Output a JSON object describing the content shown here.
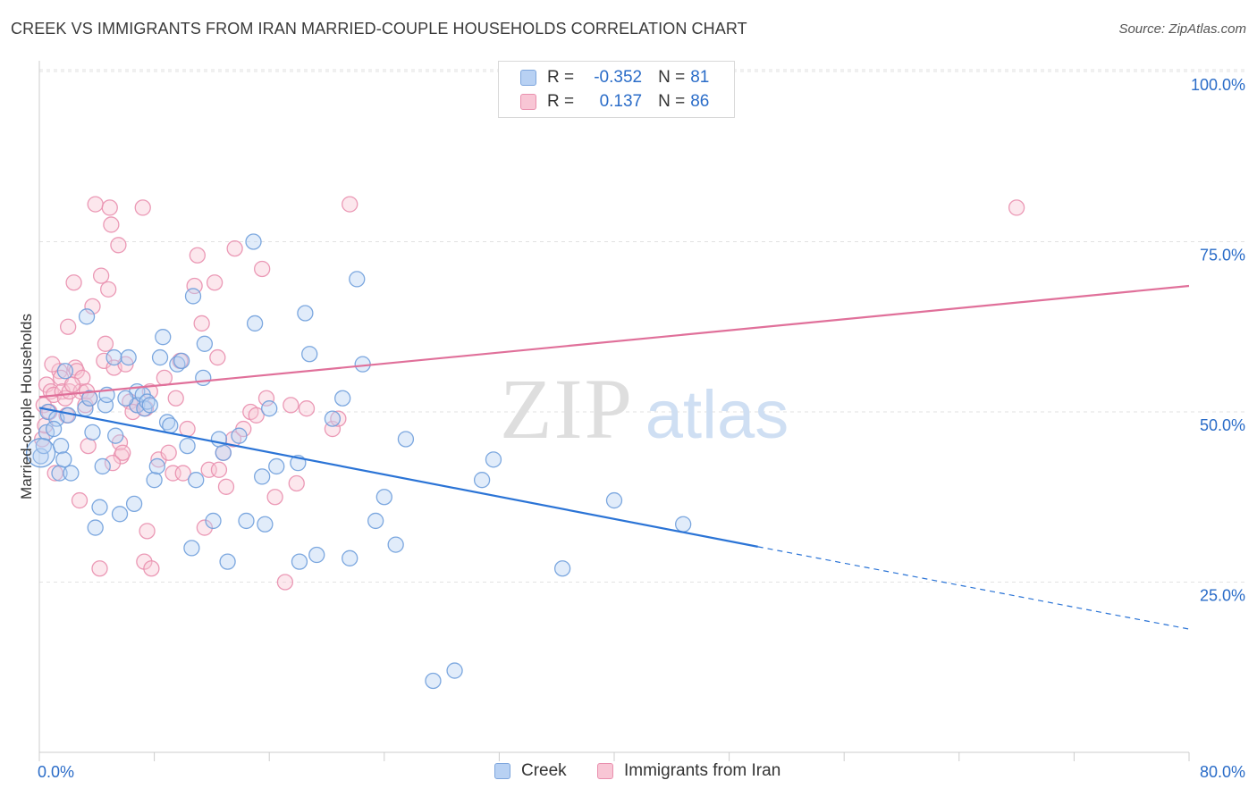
{
  "title": "CREEK VS IMMIGRANTS FROM IRAN MARRIED-COUPLE HOUSEHOLDS CORRELATION CHART",
  "source": "Source: ZipAtlas.com",
  "watermark": {
    "zip": "ZIP",
    "atlas": "atlas"
  },
  "legend": {
    "series1": {
      "r_label": "R =",
      "r_value": "-0.352",
      "n_label": "N =",
      "n_value": "81"
    },
    "series2": {
      "r_label": "R =",
      "r_value": "0.137",
      "n_label": "N =",
      "n_value": "86"
    }
  },
  "colors": {
    "creek_fill": "#b8d1f3",
    "creek_stroke": "#6f9fdc",
    "creek_line": "#2b74d6",
    "iran_fill": "#f8c6d5",
    "iran_stroke": "#e98fae",
    "iran_line": "#e0709a",
    "value_text": "#2a6cc8",
    "grid": "#e2e2e2"
  },
  "chart_data": {
    "type": "scatter",
    "title": "CREEK VS IMMIGRANTS FROM IRAN MARRIED-COUPLE HOUSEHOLDS CORRELATION CHART",
    "xlabel": "",
    "ylabel": "Married-couple Households",
    "xlim": [
      0,
      80
    ],
    "ylim": [
      0,
      105
    ],
    "x_tick_labels": [
      "0.0%",
      "80.0%"
    ],
    "y_ticks": [
      25,
      50,
      75,
      100
    ],
    "y_tick_labels": [
      "25.0%",
      "50.0%",
      "75.0%",
      "100.0%"
    ],
    "grid": true,
    "legend_position": "top-center",
    "series": [
      {
        "name": "Creek",
        "R": -0.352,
        "N": 81,
        "trend": {
          "x0": 0,
          "y0": 50.6,
          "x1": 50,
          "y1": 30.2,
          "dash_to_x": 80,
          "dash_to_y": 18.1
        },
        "points": [
          [
            0.1,
            43.5
          ],
          [
            0.3,
            45
          ],
          [
            0.5,
            47
          ],
          [
            0.6,
            50
          ],
          [
            1.2,
            49
          ],
          [
            1.4,
            41
          ],
          [
            1.5,
            45
          ],
          [
            1.7,
            43
          ],
          [
            1.8,
            56
          ],
          [
            2.0,
            49.5
          ],
          [
            2.2,
            41
          ],
          [
            3.2,
            50.5
          ],
          [
            3.3,
            64
          ],
          [
            3.5,
            52
          ],
          [
            3.7,
            47
          ],
          [
            3.9,
            33
          ],
          [
            4.2,
            36
          ],
          [
            4.4,
            42
          ],
          [
            4.6,
            51
          ],
          [
            4.7,
            52.5
          ],
          [
            5.2,
            58
          ],
          [
            5.3,
            46.5
          ],
          [
            5.6,
            35
          ],
          [
            6.2,
            58
          ],
          [
            6.6,
            36.5
          ],
          [
            6.8,
            53
          ],
          [
            6.8,
            51
          ],
          [
            7.2,
            52.5
          ],
          [
            7.3,
            50.5
          ],
          [
            7.5,
            51.5
          ],
          [
            7.7,
            51
          ],
          [
            8.0,
            40
          ],
          [
            8.2,
            42
          ],
          [
            8.4,
            58
          ],
          [
            8.6,
            61
          ],
          [
            8.9,
            48.5
          ],
          [
            9.1,
            48
          ],
          [
            9.6,
            57
          ],
          [
            9.9,
            57.5
          ],
          [
            10.3,
            45
          ],
          [
            10.6,
            30
          ],
          [
            10.7,
            67
          ],
          [
            10.9,
            40
          ],
          [
            11.4,
            55
          ],
          [
            11.5,
            60
          ],
          [
            12.1,
            34
          ],
          [
            12.8,
            44
          ],
          [
            13.1,
            28
          ],
          [
            13.9,
            46.5
          ],
          [
            14.4,
            34
          ],
          [
            14.9,
            75
          ],
          [
            15.0,
            63
          ],
          [
            15.5,
            40.5
          ],
          [
            15.7,
            33.5
          ],
          [
            16.0,
            50.5
          ],
          [
            16.5,
            42
          ],
          [
            18.0,
            42.5
          ],
          [
            18.1,
            28
          ],
          [
            18.5,
            64.5
          ],
          [
            18.8,
            58.5
          ],
          [
            19.3,
            29
          ],
          [
            20.4,
            49
          ],
          [
            21.1,
            52
          ],
          [
            21.6,
            28.5
          ],
          [
            22.1,
            69.5
          ],
          [
            22.5,
            57
          ],
          [
            23.4,
            34
          ],
          [
            24.0,
            37.5
          ],
          [
            24.8,
            30.5
          ],
          [
            25.5,
            46
          ],
          [
            27.4,
            10.5
          ],
          [
            28.9,
            12
          ],
          [
            30.8,
            40
          ],
          [
            31.6,
            43
          ],
          [
            36.4,
            27
          ],
          [
            40.0,
            37
          ],
          [
            44.8,
            33.5
          ],
          [
            1.0,
            47.5
          ],
          [
            6.0,
            52
          ],
          [
            12.5,
            46
          ]
        ]
      },
      {
        "name": "Immigrants from Iran",
        "R": 0.137,
        "N": 86,
        "trend": {
          "x0": 0,
          "y0": 52.2,
          "x1": 80,
          "y1": 68.5
        },
        "points": [
          [
            0.2,
            46
          ],
          [
            0.3,
            51
          ],
          [
            0.4,
            48
          ],
          [
            0.5,
            54
          ],
          [
            0.7,
            50
          ],
          [
            0.8,
            53
          ],
          [
            1.0,
            52.5
          ],
          [
            1.1,
            41
          ],
          [
            1.4,
            56
          ],
          [
            1.5,
            55
          ],
          [
            1.6,
            53
          ],
          [
            1.8,
            52
          ],
          [
            1.9,
            49.5
          ],
          [
            2.0,
            62.5
          ],
          [
            2.1,
            53
          ],
          [
            2.4,
            69
          ],
          [
            2.5,
            56.5
          ],
          [
            2.6,
            56
          ],
          [
            2.8,
            37
          ],
          [
            2.9,
            53
          ],
          [
            3.0,
            55
          ],
          [
            3.2,
            51
          ],
          [
            3.3,
            53
          ],
          [
            3.5,
            52
          ],
          [
            3.7,
            65.5
          ],
          [
            3.9,
            80.5
          ],
          [
            4.2,
            27
          ],
          [
            4.3,
            70
          ],
          [
            4.5,
            57.5
          ],
          [
            4.6,
            60
          ],
          [
            4.8,
            68
          ],
          [
            4.9,
            80
          ],
          [
            5.0,
            77.5
          ],
          [
            5.2,
            56.5
          ],
          [
            5.5,
            74.5
          ],
          [
            5.6,
            45.5
          ],
          [
            5.7,
            43.5
          ],
          [
            5.8,
            44
          ],
          [
            6.0,
            57
          ],
          [
            6.3,
            51.5
          ],
          [
            6.8,
            51
          ],
          [
            7.2,
            80
          ],
          [
            7.3,
            28
          ],
          [
            7.4,
            50.5
          ],
          [
            7.5,
            32.5
          ],
          [
            7.7,
            53
          ],
          [
            7.8,
            27
          ],
          [
            8.3,
            43
          ],
          [
            8.7,
            55
          ],
          [
            9.3,
            41
          ],
          [
            9.5,
            52
          ],
          [
            9.8,
            57.5
          ],
          [
            10.3,
            47.5
          ],
          [
            10.8,
            68.5
          ],
          [
            11.0,
            73
          ],
          [
            11.3,
            63
          ],
          [
            11.5,
            33
          ],
          [
            11.8,
            41.5
          ],
          [
            12.2,
            69
          ],
          [
            12.4,
            58
          ],
          [
            12.5,
            41.5
          ],
          [
            12.8,
            44
          ],
          [
            13.5,
            46
          ],
          [
            13.6,
            74
          ],
          [
            14.2,
            47.5
          ],
          [
            14.7,
            50
          ],
          [
            15.1,
            49.5
          ],
          [
            15.5,
            71
          ],
          [
            15.8,
            52
          ],
          [
            16.4,
            37.5
          ],
          [
            17.1,
            25
          ],
          [
            17.5,
            51
          ],
          [
            17.9,
            39.5
          ],
          [
            18.6,
            50.5
          ],
          [
            20.4,
            47.5
          ],
          [
            20.8,
            49
          ],
          [
            21.6,
            80.5
          ],
          [
            68.0,
            80
          ],
          [
            0.9,
            57
          ],
          [
            2.3,
            54
          ],
          [
            3.4,
            45
          ],
          [
            5.1,
            42.5
          ],
          [
            6.5,
            50
          ],
          [
            9.0,
            44
          ],
          [
            10.0,
            41
          ],
          [
            13.0,
            39
          ]
        ]
      }
    ]
  }
}
